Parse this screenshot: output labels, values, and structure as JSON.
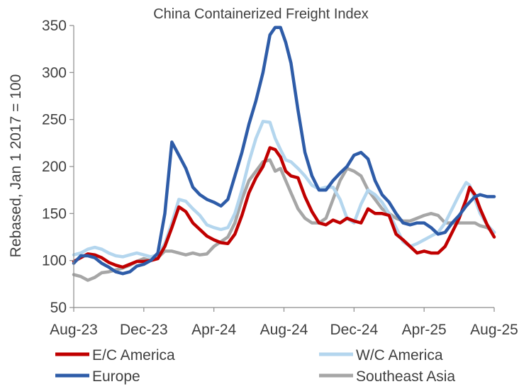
{
  "chart_data": {
    "type": "line",
    "title": "China Containerized Freight Index",
    "xlabel": "",
    "ylabel": "Rebased, Jan 1 2017 = 100",
    "ylim": [
      50,
      350
    ],
    "yticks": [
      50,
      100,
      150,
      200,
      250,
      300,
      350
    ],
    "xlim": [
      0,
      24
    ],
    "xticks": [
      0,
      4,
      8,
      12,
      16,
      20,
      24
    ],
    "xtick_labels": [
      "Aug-23",
      "Dec-23",
      "Apr-24",
      "Aug-24",
      "Dec-24",
      "Apr-25",
      "Aug-25"
    ],
    "grid": false,
    "legend": "bottom",
    "series": [
      {
        "name": "E/C America",
        "color": "#c00000",
        "x": [
          0,
          0.4,
          0.8,
          1.2,
          1.6,
          2.0,
          2.4,
          2.8,
          3.2,
          3.6,
          4.0,
          4.4,
          4.8,
          5.2,
          5.6,
          6.0,
          6.4,
          6.8,
          7.2,
          7.6,
          8.0,
          8.4,
          8.8,
          9.2,
          9.6,
          10.0,
          10.4,
          10.8,
          11.2,
          11.5,
          11.8,
          12.1,
          12.4,
          12.8,
          13.2,
          13.6,
          14.0,
          14.4,
          14.8,
          15.2,
          15.6,
          16.0,
          16.4,
          16.8,
          17.2,
          17.6,
          18.0,
          18.4,
          18.8,
          19.2,
          19.6,
          20.0,
          20.4,
          20.8,
          21.2,
          21.6,
          22.0,
          22.4,
          22.6,
          22.9,
          23.2,
          23.6,
          24.0
        ],
        "values": [
          99,
          103,
          107,
          106,
          103,
          98,
          95,
          93,
          96,
          99,
          99,
          100,
          102,
          115,
          135,
          157,
          152,
          140,
          133,
          126,
          122,
          119,
          118,
          128,
          148,
          172,
          188,
          200,
          220,
          218,
          210,
          195,
          190,
          188,
          168,
          152,
          140,
          138,
          143,
          140,
          145,
          142,
          140,
          155,
          150,
          150,
          148,
          128,
          122,
          115,
          108,
          110,
          108,
          108,
          115,
          130,
          145,
          165,
          178,
          170,
          155,
          138,
          125
        ]
      },
      {
        "name": "W/C America",
        "color": "#b4d6ee",
        "x": [
          0,
          0.4,
          0.8,
          1.2,
          1.6,
          2.0,
          2.4,
          2.8,
          3.2,
          3.6,
          4.0,
          4.4,
          4.8,
          5.2,
          5.6,
          6.0,
          6.4,
          6.8,
          7.2,
          7.6,
          8.0,
          8.4,
          8.8,
          9.2,
          9.6,
          10.0,
          10.4,
          10.8,
          11.2,
          11.5,
          11.8,
          12.1,
          12.4,
          12.8,
          13.2,
          13.6,
          14.0,
          14.4,
          14.8,
          15.2,
          15.6,
          16.0,
          16.4,
          16.8,
          17.2,
          17.6,
          18.0,
          18.4,
          18.8,
          19.2,
          19.6,
          20.0,
          20.4,
          20.8,
          21.2,
          21.6,
          22.0,
          22.4,
          22.6,
          22.9,
          23.2,
          23.6,
          24.0
        ],
        "values": [
          106,
          108,
          112,
          114,
          112,
          108,
          105,
          104,
          106,
          108,
          106,
          104,
          106,
          118,
          140,
          165,
          163,
          155,
          148,
          138,
          135,
          133,
          135,
          150,
          175,
          205,
          230,
          248,
          247,
          230,
          218,
          207,
          205,
          198,
          190,
          180,
          176,
          178,
          178,
          165,
          145,
          140,
          160,
          175,
          170,
          162,
          150,
          135,
          120,
          115,
          118,
          122,
          126,
          130,
          140,
          155,
          170,
          183,
          180,
          165,
          150,
          138,
          130
        ]
      },
      {
        "name": "Europe",
        "color": "#2e5ca8",
        "x": [
          0,
          0.4,
          0.8,
          1.2,
          1.6,
          2.0,
          2.4,
          2.8,
          3.2,
          3.6,
          4.0,
          4.4,
          4.8,
          5.2,
          5.6,
          6.0,
          6.4,
          6.8,
          7.2,
          7.6,
          8.0,
          8.4,
          8.8,
          9.2,
          9.6,
          10.0,
          10.4,
          10.8,
          11.2,
          11.5,
          11.8,
          12.1,
          12.4,
          12.8,
          13.2,
          13.6,
          14.0,
          14.4,
          14.8,
          15.2,
          15.6,
          16.0,
          16.4,
          16.8,
          17.2,
          17.6,
          18.0,
          18.4,
          18.8,
          19.2,
          19.6,
          20.0,
          20.4,
          20.8,
          21.2,
          21.6,
          22.0,
          22.4,
          22.6,
          22.9,
          23.2,
          23.6,
          24.0
        ],
        "values": [
          97,
          105,
          105,
          103,
          97,
          93,
          88,
          86,
          88,
          94,
          96,
          100,
          108,
          150,
          226,
          212,
          198,
          178,
          170,
          165,
          162,
          158,
          165,
          190,
          215,
          245,
          270,
          300,
          340,
          348,
          348,
          332,
          310,
          260,
          215,
          190,
          175,
          175,
          185,
          193,
          200,
          212,
          215,
          208,
          185,
          170,
          162,
          150,
          140,
          138,
          140,
          140,
          135,
          128,
          130,
          140,
          148,
          158,
          162,
          168,
          170,
          168,
          168
        ]
      },
      {
        "name": "Southeast Asia",
        "color": "#a6a6a6",
        "x": [
          0,
          0.4,
          0.8,
          1.2,
          1.6,
          2.0,
          2.4,
          2.8,
          3.2,
          3.6,
          4.0,
          4.4,
          4.8,
          5.2,
          5.6,
          6.0,
          6.4,
          6.8,
          7.2,
          7.6,
          8.0,
          8.4,
          8.8,
          9.2,
          9.6,
          10.0,
          10.4,
          10.8,
          11.2,
          11.5,
          11.8,
          12.1,
          12.4,
          12.8,
          13.2,
          13.6,
          14.0,
          14.4,
          14.8,
          15.2,
          15.6,
          16.0,
          16.4,
          16.8,
          17.2,
          17.6,
          18.0,
          18.4,
          18.8,
          19.2,
          19.6,
          20.0,
          20.4,
          20.8,
          21.2,
          21.6,
          22.0,
          22.4,
          22.6,
          22.9,
          23.2,
          23.6,
          24.0
        ],
        "values": [
          85,
          83,
          79,
          82,
          87,
          88,
          90,
          92,
          95,
          99,
          102,
          100,
          103,
          110,
          110,
          108,
          106,
          108,
          106,
          107,
          115,
          120,
          125,
          140,
          165,
          185,
          195,
          205,
          207,
          195,
          198,
          185,
          172,
          155,
          145,
          140,
          140,
          145,
          165,
          185,
          198,
          195,
          190,
          175,
          165,
          155,
          150,
          145,
          142,
          142,
          145,
          148,
          150,
          148,
          140,
          140,
          140,
          140,
          140,
          140,
          137,
          135,
          130
        ]
      }
    ]
  }
}
